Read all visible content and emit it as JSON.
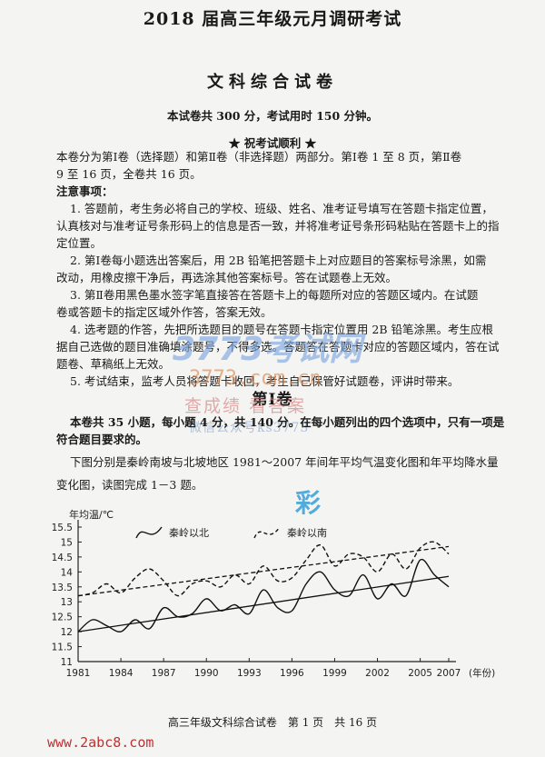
{
  "header": {
    "title": "2018 届高三年级元月调研考试",
    "subject": "文科综合试卷",
    "score_info": "本试卷共 300 分，考试用时 150 分钟。",
    "wish": "★ 祝考试顺利 ★"
  },
  "intro": {
    "line1": "本卷分为第Ⅰ卷（选择题）和第Ⅱ卷（非选择题）两部分。第Ⅰ卷 1 至 8 页，第Ⅱ卷",
    "line2": "9 至 16 页，全卷共 16 页。"
  },
  "notes": {
    "heading": "注意事项：",
    "lines": [
      "1. 答题前，考生务必将自己的学校、班级、姓名、准考证号填写在答题卡指定位置，",
      "认真核对与准考证号条形码上的信息是否一致，并将准考证号条形码粘贴在答题卡上的指",
      "定位置。",
      "2. 第Ⅰ卷每小题选出答案后，用 2B 铅笔把答题卡上对应题目的答案标号涂黑，如需",
      "改动，用橡皮擦干净后，再选涂其他答案标号。答在试题卷上无效。",
      "3. 第Ⅱ卷用黑色墨水签字笔直接答在答题卡上的每题所对应的答题区域内。在试题",
      "卷或答题卡的指定区域外作答，答案无效。",
      "4. 选考题的作答，先把所选题目的题号在答题卡指定位置用 2B 铅笔涂黑。考生应根",
      "据自己选做的题目准确填涂题号，不得多选。答题答在答题卡对应的答题区域内，答在试",
      "题卷、草稿纸上无效。",
      "5. 考试结束，监考人员将答题卡收回，考生自己保管好试题卷，评讲时带来。"
    ]
  },
  "section": {
    "title": "第Ⅰ卷",
    "desc_line1": "本卷共 35 小题，每小题 4 分，共 140 分。在每小题列出的四个选项中，只有一项是",
    "desc_line2": "符合题目要求的。",
    "question_line1": "下图分别是秦岭南坡与北坡地区 1981～2007 年间年平均气温变化图和年平均降水量",
    "question_line2": "变化图，读图完成 1－3 题。"
  },
  "watermarks": {
    "logo": "3773考试网",
    "domain": "3773.com.cn",
    "promo1": "查成绩 看答案",
    "promo2": "微信公众号ks3773",
    "stamp": "彩"
  },
  "footer": {
    "text": "高三年级文科综合试卷　第 1 页　共 16 页",
    "site": "www.2abc8.com"
  },
  "chart_data": {
    "type": "line",
    "ylabel": "年均温/℃",
    "xlabel": "(年份)",
    "ylim": [
      11,
      15.5
    ],
    "xlim": [
      1981,
      2007
    ],
    "y_ticks": [
      "11",
      "11.5",
      "12",
      "12.5",
      "13",
      "13.5",
      "14",
      "14.5",
      "15",
      "15.5"
    ],
    "x_ticks": [
      "1981",
      "1984",
      "1987",
      "1990",
      "1993",
      "1996",
      "1999",
      "2002",
      "2005",
      "2007"
    ],
    "x": [
      1981,
      1982,
      1983,
      1984,
      1985,
      1986,
      1987,
      1988,
      1989,
      1990,
      1991,
      1992,
      1993,
      1994,
      1995,
      1996,
      1997,
      1998,
      1999,
      2000,
      2001,
      2002,
      2003,
      2004,
      2005,
      2006,
      2007
    ],
    "series": [
      {
        "name": "秦岭以北",
        "style": "solid",
        "values": [
          12.0,
          12.4,
          12.2,
          12.0,
          12.4,
          12.1,
          12.8,
          12.5,
          12.6,
          13.1,
          12.7,
          12.9,
          12.6,
          13.4,
          12.8,
          12.7,
          13.6,
          14.0,
          13.4,
          13.2,
          13.9,
          13.1,
          13.6,
          13.2,
          14.4,
          13.9,
          13.5
        ],
        "trend": [
          12.0,
          13.85
        ]
      },
      {
        "name": "秦岭以南",
        "style": "dashed",
        "values": [
          13.2,
          13.3,
          13.6,
          13.3,
          13.8,
          14.1,
          13.7,
          13.2,
          13.6,
          13.7,
          13.5,
          13.9,
          13.6,
          14.2,
          13.7,
          13.8,
          14.4,
          14.9,
          14.2,
          14.6,
          14.5,
          14.0,
          14.6,
          14.1,
          14.8,
          15.0,
          14.6
        ],
        "trend": [
          13.2,
          14.85
        ]
      }
    ],
    "legend": "top"
  }
}
